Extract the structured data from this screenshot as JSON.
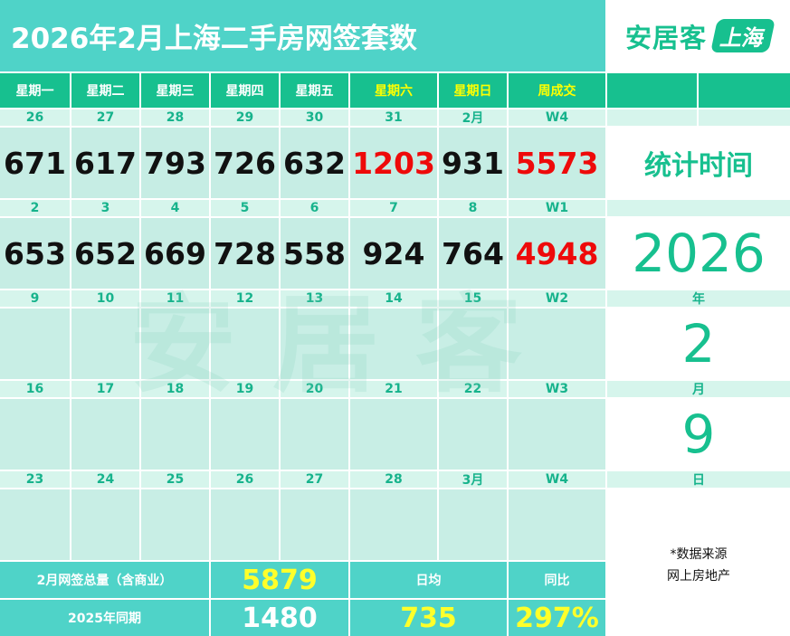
{
  "title": "2026年2月上海二手房网签套数",
  "logo": {
    "brand": "安居客",
    "city": "上海"
  },
  "headers": [
    "星期一",
    "星期二",
    "星期三",
    "星期四",
    "星期五",
    "星期六",
    "星期日",
    "周成交"
  ],
  "weeks": [
    {
      "dates": [
        "26",
        "27",
        "28",
        "29",
        "30",
        "31",
        "2月",
        "W4"
      ],
      "values": [
        "671",
        "617",
        "793",
        "726",
        "632",
        "1203",
        "931",
        "5573"
      ]
    },
    {
      "dates": [
        "2",
        "3",
        "4",
        "5",
        "6",
        "7",
        "8",
        "W1"
      ],
      "values": [
        "653",
        "652",
        "669",
        "728",
        "558",
        "924",
        "764",
        "4948"
      ]
    },
    {
      "dates": [
        "9",
        "10",
        "11",
        "12",
        "13",
        "14",
        "15",
        "W2"
      ],
      "values": [
        "",
        "",
        "",
        "",
        "",
        "",
        "",
        ""
      ]
    },
    {
      "dates": [
        "16",
        "17",
        "18",
        "19",
        "20",
        "21",
        "22",
        "W3"
      ],
      "values": [
        "",
        "",
        "",
        "",
        "",
        "",
        "",
        ""
      ]
    },
    {
      "dates": [
        "23",
        "24",
        "25",
        "26",
        "27",
        "28",
        "3月",
        "W4"
      ],
      "values": [
        "",
        "",
        "",
        "",
        "",
        "",
        "",
        ""
      ]
    }
  ],
  "side": {
    "label": "统计时间",
    "year": "2026",
    "year_unit": "年",
    "month": "2",
    "month_unit": "月",
    "day": "9",
    "day_unit": "日",
    "source_line1": "*数据来源",
    "source_line2": "网上房地产"
  },
  "footer": {
    "total_label": "2月网签总量（含商业）",
    "total_value": "5879",
    "avg_label": "日均",
    "yoy_label": "同比",
    "prev_label": "2025年同期",
    "prev_value": "1480",
    "avg_value": "735",
    "yoy_value": "297%"
  },
  "watermark": "安居客",
  "colors": {
    "brand_green": "#17c08f",
    "teal": "#4fd3c8",
    "highlight_red": "#ee0a0a",
    "highlight_yellow": "#ffff2a"
  }
}
